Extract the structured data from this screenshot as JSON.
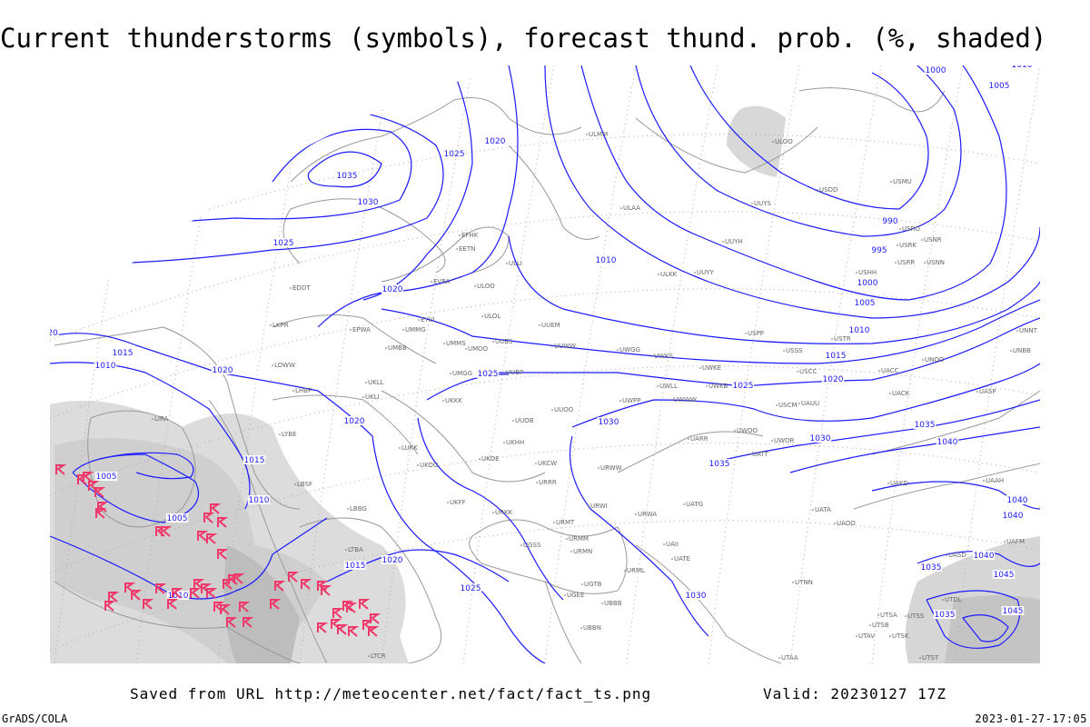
{
  "header": {
    "title": "Current thunderstorms (symbols), forecast thund. prob. (%, shaded)"
  },
  "footer": {
    "saved_from": "Saved from URL http://meteocenter.net/fact/fact_ts.png",
    "valid": "Valid: 20230127 17Z",
    "software": "GrADS/COLA",
    "generated": "2023-01-27-17:05"
  },
  "colors": {
    "isobar": "#1a1aff",
    "coastline": "#999999",
    "thunderstorm_symbol": "#f0386a",
    "probability_shading": "#cccccc"
  },
  "legend": {
    "symbol_icon": "thunderstorm-flag-icon"
  },
  "stations": [
    "ULMM",
    "ULOO",
    "USDD",
    "USMU",
    "UUYS",
    "USRO",
    "ULAA",
    "UUYH",
    "USRK",
    "USNR",
    "USRR",
    "USNN",
    "USHH",
    "ULLI",
    "ULKK",
    "UUYY",
    "ULOL",
    "ULOO",
    "EVRA",
    "EFHK",
    "EETN",
    "UUEM",
    "EDDT",
    "EPWA",
    "UMMG",
    "EYVI",
    "UMBB",
    "UMMS",
    "UMOO",
    "UUBS",
    "UUWW",
    "UWGG",
    "UWKS",
    "USPP",
    "USSS",
    "USTR",
    "UKLL",
    "UKLI",
    "LHBP",
    "LKPR",
    "LOWW",
    "UMGG",
    "UUBP",
    "UWKE",
    "UWLL",
    "UWKB",
    "UWWW",
    "USCC",
    "USCM",
    "UAUU",
    "UACC",
    "UNOO",
    "UACK",
    "UASP",
    "UNBB",
    "UNNT",
    "UKKK",
    "UUOO",
    "UUOB",
    "UWPP",
    "LIRA",
    "LYBE",
    "UKHH",
    "UKOO",
    "UKDE",
    "LUKK",
    "UKCW",
    "URRR",
    "URWW",
    "URWI",
    "UWOO",
    "UWOR",
    "UATT",
    "UARR",
    "UAKD",
    "UAAH",
    "UATG",
    "URWA",
    "URMT",
    "URMM",
    "URMN",
    "UGSS",
    "UATE",
    "UAII",
    "UGTB",
    "UGEE",
    "UBBB",
    "UBBN",
    "URML",
    "UTNN",
    "UTSA",
    "UTSS",
    "UTSB",
    "UTAV",
    "UTSK",
    "UTST",
    "UTAA",
    "UTDL",
    "LTCR",
    "LBSF",
    "LBBG",
    "LTBA",
    "UATA",
    "UAOO",
    "UAFM",
    "UASD",
    "UKFF",
    "URKK"
  ],
  "isobar_labels": [
    "1035",
    "1030",
    "1025",
    "1025",
    "1020",
    "1020",
    "1020",
    "1020",
    "1015",
    "1010",
    "1015",
    "1010",
    "1005",
    "1005",
    "1010",
    "1015",
    "1020",
    "1025",
    "1030",
    "1035",
    "1030",
    "1025",
    "1010",
    "1000",
    "1010",
    "1005",
    "990",
    "995",
    "1000",
    "1005",
    "1010",
    "1015",
    "1020",
    "1025",
    "1030",
    "1035",
    "1040",
    "1040",
    "1040",
    "1035",
    "1040",
    "1045",
    "1035",
    "1045",
    "20"
  ],
  "thunderstorm_count": 52
}
